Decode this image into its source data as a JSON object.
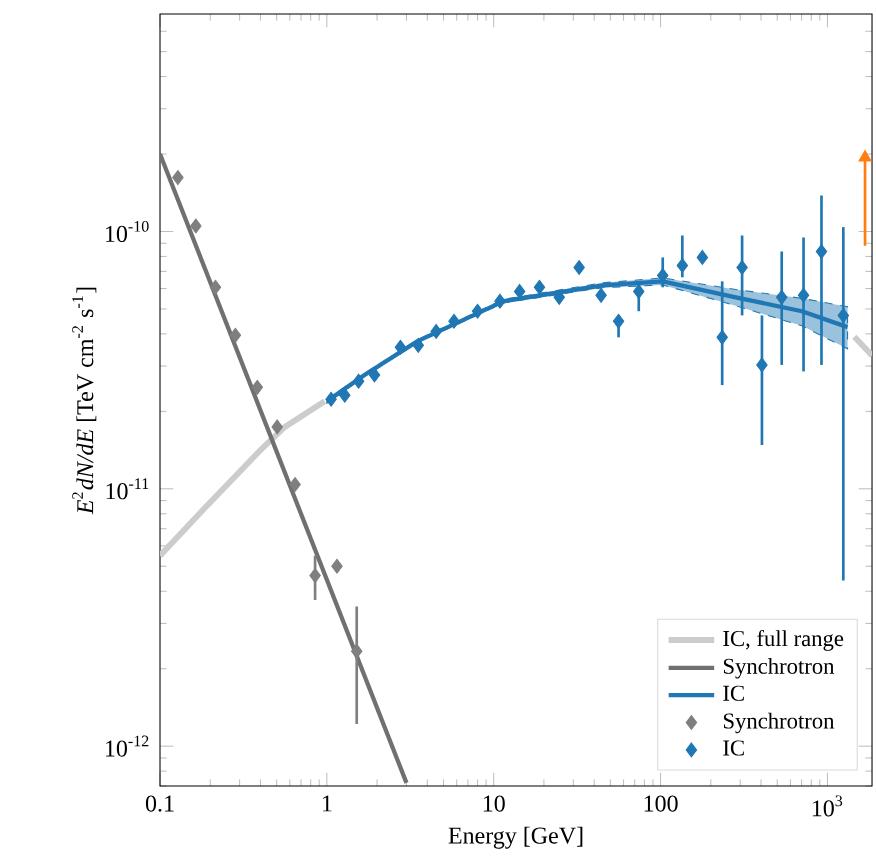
{
  "chart_data": {
    "type": "line",
    "xlabel": "Energy [GeV]",
    "ylabel": "*E*$^{2}$*dN/dE* [TeV cm$^{-2}$ s$^{-1}$]",
    "log": "xy",
    "xlim": [
      0.1,
      1850
    ],
    "ylim": [
      7e-13,
      7e-10
    ],
    "xticks": [
      0.1,
      1,
      10,
      100,
      {
        "value": 1000,
        "label": "10$^{3}$"
      }
    ],
    "yticks": [
      {
        "value": 1e-12,
        "label": "10$^{-12}$"
      },
      {
        "value": 1e-11,
        "label": "10$^{-11}$"
      },
      {
        "value": 1e-10,
        "label": "10$^{-10}$"
      }
    ],
    "legend": "bottom right",
    "series": [
      {
        "name": "IC, full range",
        "color": "#cccccc",
        "marker": "none",
        "x": [
          0.1,
          0.188,
          0.394,
          0.56,
          0.97,
          1.68,
          3.5,
          11.5,
          45,
          103,
          282,
          703,
          1450,
          1850
        ],
        "values": [
          5.5e-12,
          8.5e-12,
          1.4e-11,
          1.74e-11,
          2.19e-11,
          null,
          null,
          null,
          null,
          null,
          null,
          null,
          3.9e-11,
          3.3e-11
        ]
      },
      {
        "name": "Synchrotron",
        "color": "#707070",
        "marker": "none",
        "x": [
          0.1,
          3.0
        ],
        "values": [
          2e-10,
          7.2e-13
        ]
      },
      {
        "name": "IC",
        "color": "#1f77b4",
        "marker": "none",
        "x": [
          1,
          1.68,
          3.5,
          11.5,
          45,
          103,
          282,
          703,
          1320
        ],
        "values": [
          2.19e-11,
          2.77e-11,
          3.75e-11,
          5.36e-11,
          6.18e-11,
          6.4e-11,
          5.55e-11,
          4.9e-11,
          4.25e-11
        ],
        "lower": [
          2.15e-11,
          2.73e-11,
          3.7e-11,
          5.28e-11,
          6.05e-11,
          6.2e-11,
          5.15e-11,
          4.3e-11,
          3.5e-11
        ],
        "upper": [
          2.23e-11,
          2.81e-11,
          3.8e-11,
          5.45e-11,
          6.32e-11,
          6.6e-11,
          5.95e-11,
          5.5e-11,
          5.1e-11
        ]
      },
      {
        "name": "Synchrotron",
        "type": "scatter",
        "color": "#7f7f7f",
        "marker": "diamond",
        "x": [
          0.128,
          0.164,
          0.215,
          0.283,
          0.383,
          0.504,
          0.645,
          0.85,
          1.15,
          1.51
        ],
        "values": [
          1.62e-10,
          1.05e-10,
          6.07e-11,
          3.95e-11,
          2.48e-11,
          1.74e-11,
          1.04e-11,
          4.6e-12,
          5e-12,
          2.34e-12
        ],
        "errors": [
          null,
          null,
          null,
          null,
          null,
          null,
          null,
          [
            3.7e-12,
            5.5e-12
          ],
          null,
          [
            1.22e-12,
            3.49e-12
          ]
        ]
      },
      {
        "name": "IC",
        "type": "scatter",
        "color": "#1f77b4",
        "marker": "diamond",
        "x": [
          1.06,
          1.28,
          1.55,
          1.93,
          2.76,
          3.53,
          4.52,
          5.78,
          8.0,
          10.9,
          14.3,
          18.8,
          24.7,
          32.5,
          44,
          56,
          74,
          103,
          135,
          178,
          234,
          308,
          405,
          532,
          719,
          921,
          1245
        ],
        "values": [
          2.23e-11,
          2.31e-11,
          2.62e-11,
          2.77e-11,
          3.55e-11,
          3.61e-11,
          4.09e-11,
          4.48e-11,
          4.9e-11,
          5.36e-11,
          5.85e-11,
          6.07e-11,
          5.55e-11,
          7.25e-11,
          5.65e-11,
          4.48e-11,
          5.85e-11,
          6.74e-11,
          7.38e-11,
          7.93e-11,
          3.88e-11,
          7.25e-11,
          3.03e-11,
          5.55e-11,
          5.65e-11,
          8.36e-11,
          4.72e-11
        ],
        "errors": [
          null,
          null,
          null,
          null,
          null,
          null,
          null,
          null,
          null,
          null,
          null,
          null,
          null,
          null,
          null,
          [
            3.88e-11,
            4.72e-11
          ],
          [
            4.9e-11,
            6.4e-11
          ],
          [
            6.07e-11,
            7.93e-11
          ],
          [
            6.64e-11,
            9.65e-11
          ],
          null,
          [
            2.53e-11,
            6.4e-11
          ],
          [
            4.72e-11,
            9.65e-11
          ],
          [
            1.48e-11,
            4.72e-11
          ],
          [
            3.03e-11,
            8.36e-11
          ],
          [
            2.86e-11,
            9.48e-11
          ],
          [
            3.03e-11,
            1.38e-10
          ],
          [
            4.4e-12,
            1.04e-10
          ]
        ]
      },
      {
        "type": "scatter",
        "color": "#ff7f0e",
        "marker": "triangle",
        "x": [
          1680
        ],
        "values": [
          1.94e-10
        ],
        "errors": [
          [
            8.8e-11,
            1.94e-10
          ]
        ]
      }
    ]
  }
}
